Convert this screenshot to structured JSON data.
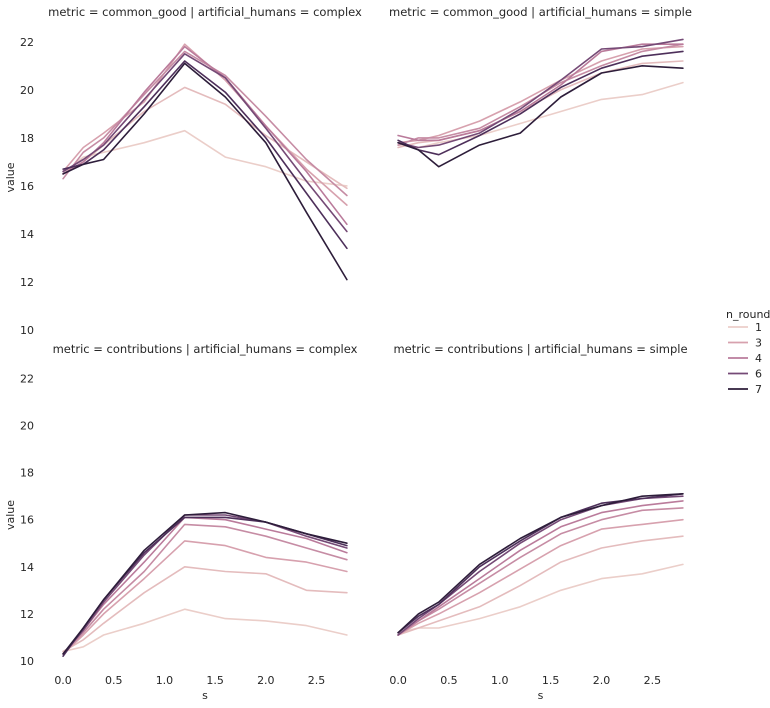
{
  "legend": {
    "title": "n_rounds",
    "entries": [
      {
        "label": "1",
        "color": "#ebcec9"
      },
      {
        "label": "3",
        "color": "#d7a1ae"
      },
      {
        "label": "4",
        "color": "#ba7b9b"
      },
      {
        "label": "6",
        "color": "#754a76"
      },
      {
        "label": "7",
        "color": "#2d1d3a"
      }
    ]
  },
  "chart_data": [
    {
      "type": "line",
      "title": "metric = common_good | artificial_humans = complex",
      "xlabel": "",
      "ylabel": "value",
      "xlim": [
        -0.05,
        2.85
      ],
      "ylim": [
        10,
        22.7
      ],
      "x_ticks": [],
      "y_ticks": [
        "10",
        "12",
        "14",
        "16",
        "18",
        "20",
        "22"
      ],
      "series": [
        {
          "color": "#ebcec9",
          "x": [
            0,
            0.2,
            0.4,
            0.8,
            1.2,
            1.6,
            2.0,
            2.4,
            2.8
          ],
          "y": [
            16.5,
            17.2,
            17.4,
            17.8,
            18.3,
            17.2,
            16.8,
            16.2,
            16.0
          ]
        },
        {
          "color": "#e4bcbd",
          "x": [
            0,
            0.2,
            0.4,
            0.8,
            1.2,
            1.6,
            2.0,
            2.4,
            2.8
          ],
          "y": [
            16.5,
            17.0,
            17.7,
            19.1,
            20.1,
            19.4,
            18.1,
            17.0,
            15.9
          ]
        },
        {
          "color": "#d7a1ae",
          "x": [
            0,
            0.2,
            0.4,
            0.8,
            1.2,
            1.6,
            2.0,
            2.4,
            2.8
          ],
          "y": [
            16.6,
            17.6,
            18.2,
            19.5,
            21.9,
            20.4,
            18.5,
            16.7,
            15.2
          ]
        },
        {
          "color": "#c68ca4",
          "x": [
            0,
            0.2,
            0.4,
            0.8,
            1.2,
            1.6,
            2.0,
            2.4,
            2.8
          ],
          "y": [
            16.3,
            17.4,
            18.0,
            19.8,
            21.6,
            20.6,
            18.9,
            17.1,
            15.6
          ]
        },
        {
          "color": "#ba7b9b",
          "x": [
            0,
            0.2,
            0.4,
            0.8,
            1.2,
            1.6,
            2.0,
            2.4,
            2.8
          ],
          "y": [
            16.5,
            17.0,
            17.8,
            19.9,
            21.8,
            20.5,
            18.5,
            16.6,
            14.4
          ]
        },
        {
          "color": "#754a76",
          "x": [
            0,
            0.2,
            0.4,
            0.8,
            1.2,
            1.6,
            2.0,
            2.4,
            2.8
          ],
          "y": [
            16.6,
            17.1,
            17.7,
            19.6,
            21.5,
            20.5,
            18.4,
            16.2,
            14.1
          ]
        },
        {
          "color": "#4d2f5a",
          "x": [
            0,
            0.2,
            0.4,
            0.8,
            1.2,
            1.6,
            2.0,
            2.4,
            2.8
          ],
          "y": [
            16.7,
            16.9,
            17.5,
            19.3,
            21.2,
            19.9,
            18.0,
            15.7,
            13.4
          ]
        },
        {
          "color": "#2d1d3a",
          "x": [
            0,
            0.2,
            0.4,
            0.8,
            1.2,
            1.6,
            2.0,
            2.4,
            2.8
          ],
          "y": [
            16.5,
            16.9,
            17.1,
            19.0,
            21.1,
            19.7,
            17.8,
            14.9,
            12.1
          ]
        }
      ]
    },
    {
      "type": "line",
      "title": "metric = common_good | artificial_humans = simple",
      "xlabel": "",
      "ylabel": "",
      "xlim": [
        -0.05,
        2.85
      ],
      "ylim": [
        10,
        22.7
      ],
      "x_ticks": [],
      "y_ticks": [],
      "series": [
        {
          "color": "#ebcec9",
          "x": [
            0,
            0.2,
            0.4,
            0.8,
            1.2,
            1.6,
            2.0,
            2.4,
            2.8
          ],
          "y": [
            17.7,
            17.6,
            17.8,
            18.1,
            18.6,
            19.1,
            19.6,
            19.8,
            20.3
          ]
        },
        {
          "color": "#e4bcbd",
          "x": [
            0,
            0.2,
            0.4,
            0.8,
            1.2,
            1.6,
            2.0,
            2.4,
            2.8
          ],
          "y": [
            17.6,
            17.8,
            17.9,
            18.3,
            19.1,
            20.0,
            20.7,
            21.1,
            21.2
          ]
        },
        {
          "color": "#d7a1ae",
          "x": [
            0,
            0.2,
            0.4,
            0.8,
            1.2,
            1.6,
            2.0,
            2.4,
            2.8
          ],
          "y": [
            17.8,
            17.9,
            18.1,
            18.7,
            19.5,
            20.4,
            21.2,
            21.7,
            21.8
          ]
        },
        {
          "color": "#c68ca4",
          "x": [
            0,
            0.2,
            0.4,
            0.8,
            1.2,
            1.6,
            2.0,
            2.4,
            2.8
          ],
          "y": [
            17.7,
            18.0,
            18.0,
            18.4,
            19.3,
            20.3,
            21.0,
            21.6,
            21.9
          ]
        },
        {
          "color": "#ba7b9b",
          "x": [
            0,
            0.2,
            0.4,
            0.8,
            1.2,
            1.6,
            2.0,
            2.4,
            2.8
          ],
          "y": [
            18.1,
            17.9,
            17.9,
            18.3,
            19.1,
            20.2,
            21.6,
            21.9,
            21.9
          ]
        },
        {
          "color": "#754a76",
          "x": [
            0,
            0.2,
            0.4,
            0.8,
            1.2,
            1.6,
            2.0,
            2.4,
            2.8
          ],
          "y": [
            17.8,
            17.6,
            17.7,
            18.2,
            19.2,
            20.4,
            21.7,
            21.8,
            22.1
          ]
        },
        {
          "color": "#4d2f5a",
          "x": [
            0,
            0.2,
            0.4,
            0.8,
            1.2,
            1.6,
            2.0,
            2.4,
            2.8
          ],
          "y": [
            17.9,
            17.5,
            17.3,
            18.1,
            19.0,
            20.1,
            20.9,
            21.4,
            21.6
          ]
        },
        {
          "color": "#2d1d3a",
          "x": [
            0,
            0.2,
            0.4,
            0.8,
            1.2,
            1.6,
            2.0,
            2.4,
            2.8
          ],
          "y": [
            17.8,
            17.5,
            16.8,
            17.7,
            18.2,
            19.7,
            20.7,
            21.0,
            20.9
          ]
        }
      ]
    },
    {
      "type": "line",
      "title": "metric = contributions | artificial_humans = complex",
      "xlabel": "s",
      "ylabel": "value",
      "xlim": [
        -0.05,
        2.85
      ],
      "ylim": [
        9.7,
        22.7
      ],
      "x_ticks": [
        "0.0",
        "0.5",
        "1.0",
        "1.5",
        "2.0",
        "2.5"
      ],
      "y_ticks": [
        "10",
        "12",
        "14",
        "16",
        "18",
        "20",
        "22"
      ],
      "series": [
        {
          "color": "#ebcec9",
          "x": [
            0,
            0.2,
            0.4,
            0.8,
            1.2,
            1.6,
            2.0,
            2.4,
            2.8
          ],
          "y": [
            10.4,
            10.6,
            11.1,
            11.6,
            12.2,
            11.8,
            11.7,
            11.5,
            11.1
          ]
        },
        {
          "color": "#e4bcbd",
          "x": [
            0,
            0.2,
            0.4,
            0.8,
            1.2,
            1.6,
            2.0,
            2.4,
            2.8
          ],
          "y": [
            10.4,
            10.9,
            11.6,
            12.9,
            14.0,
            13.8,
            13.7,
            13.0,
            12.9
          ]
        },
        {
          "color": "#d7a1ae",
          "x": [
            0,
            0.2,
            0.4,
            0.8,
            1.2,
            1.6,
            2.0,
            2.4,
            2.8
          ],
          "y": [
            10.3,
            11.1,
            12.0,
            13.5,
            15.1,
            14.9,
            14.4,
            14.2,
            13.8
          ]
        },
        {
          "color": "#c68ca4",
          "x": [
            0,
            0.2,
            0.4,
            0.8,
            1.2,
            1.6,
            2.0,
            2.4,
            2.8
          ],
          "y": [
            10.3,
            11.2,
            12.2,
            13.8,
            15.8,
            15.7,
            15.3,
            14.8,
            14.3
          ]
        },
        {
          "color": "#ba7b9b",
          "x": [
            0,
            0.2,
            0.4,
            0.8,
            1.2,
            1.6,
            2.0,
            2.4,
            2.8
          ],
          "y": [
            10.3,
            11.3,
            12.4,
            14.2,
            16.1,
            16.0,
            15.6,
            15.2,
            14.6
          ]
        },
        {
          "color": "#754a76",
          "x": [
            0,
            0.2,
            0.4,
            0.8,
            1.2,
            1.6,
            2.0,
            2.4,
            2.8
          ],
          "y": [
            10.3,
            11.3,
            12.5,
            14.5,
            16.2,
            16.2,
            15.9,
            15.3,
            14.8
          ]
        },
        {
          "color": "#4d2f5a",
          "x": [
            0,
            0.2,
            0.4,
            0.8,
            1.2,
            1.6,
            2.0,
            2.4,
            2.8
          ],
          "y": [
            10.2,
            11.4,
            12.6,
            14.6,
            16.1,
            16.1,
            15.9,
            15.4,
            14.9
          ]
        },
        {
          "color": "#2d1d3a",
          "x": [
            0,
            0.2,
            0.4,
            0.8,
            1.2,
            1.6,
            2.0,
            2.4,
            2.8
          ],
          "y": [
            10.3,
            11.4,
            12.6,
            14.7,
            16.2,
            16.3,
            15.9,
            15.4,
            15.0
          ]
        }
      ]
    },
    {
      "type": "line",
      "title": "metric = contributions | artificial_humans = simple",
      "xlabel": "s",
      "ylabel": "",
      "xlim": [
        -0.05,
        2.85
      ],
      "ylim": [
        9.7,
        22.7
      ],
      "x_ticks": [
        "0.0",
        "0.5",
        "1.0",
        "1.5",
        "2.0",
        "2.5"
      ],
      "y_ticks": [],
      "series": [
        {
          "color": "#ebcec9",
          "x": [
            0,
            0.2,
            0.4,
            0.8,
            1.2,
            1.6,
            2.0,
            2.4,
            2.8
          ],
          "y": [
            11.2,
            11.4,
            11.4,
            11.8,
            12.3,
            13.0,
            13.5,
            13.7,
            14.1
          ]
        },
        {
          "color": "#e4bcbd",
          "x": [
            0,
            0.2,
            0.4,
            0.8,
            1.2,
            1.6,
            2.0,
            2.4,
            2.8
          ],
          "y": [
            11.1,
            11.4,
            11.7,
            12.3,
            13.2,
            14.2,
            14.8,
            15.1,
            15.3
          ]
        },
        {
          "color": "#d7a1ae",
          "x": [
            0,
            0.2,
            0.4,
            0.8,
            1.2,
            1.6,
            2.0,
            2.4,
            2.8
          ],
          "y": [
            11.1,
            11.6,
            12.0,
            12.9,
            13.9,
            14.9,
            15.6,
            15.8,
            16.0
          ]
        },
        {
          "color": "#c68ca4",
          "x": [
            0,
            0.2,
            0.4,
            0.8,
            1.2,
            1.6,
            2.0,
            2.4,
            2.8
          ],
          "y": [
            11.1,
            11.7,
            12.2,
            13.3,
            14.4,
            15.4,
            16.0,
            16.4,
            16.5
          ]
        },
        {
          "color": "#ba7b9b",
          "x": [
            0,
            0.2,
            0.4,
            0.8,
            1.2,
            1.6,
            2.0,
            2.4,
            2.8
          ],
          "y": [
            11.1,
            11.7,
            12.3,
            13.5,
            14.7,
            15.7,
            16.3,
            16.6,
            16.8
          ]
        },
        {
          "color": "#754a76",
          "x": [
            0,
            0.2,
            0.4,
            0.8,
            1.2,
            1.6,
            2.0,
            2.4,
            2.8
          ],
          "y": [
            11.1,
            11.8,
            12.4,
            13.8,
            15.0,
            16.0,
            16.6,
            16.9,
            17.0
          ]
        },
        {
          "color": "#4d2f5a",
          "x": [
            0,
            0.2,
            0.4,
            0.8,
            1.2,
            1.6,
            2.0,
            2.4,
            2.8
          ],
          "y": [
            11.2,
            11.9,
            12.4,
            14.0,
            15.1,
            16.1,
            16.7,
            16.9,
            17.1
          ]
        },
        {
          "color": "#2d1d3a",
          "x": [
            0,
            0.2,
            0.4,
            0.8,
            1.2,
            1.6,
            2.0,
            2.4,
            2.8
          ],
          "y": [
            11.2,
            12.0,
            12.5,
            14.1,
            15.2,
            16.1,
            16.6,
            17.0,
            17.1
          ]
        }
      ]
    }
  ]
}
